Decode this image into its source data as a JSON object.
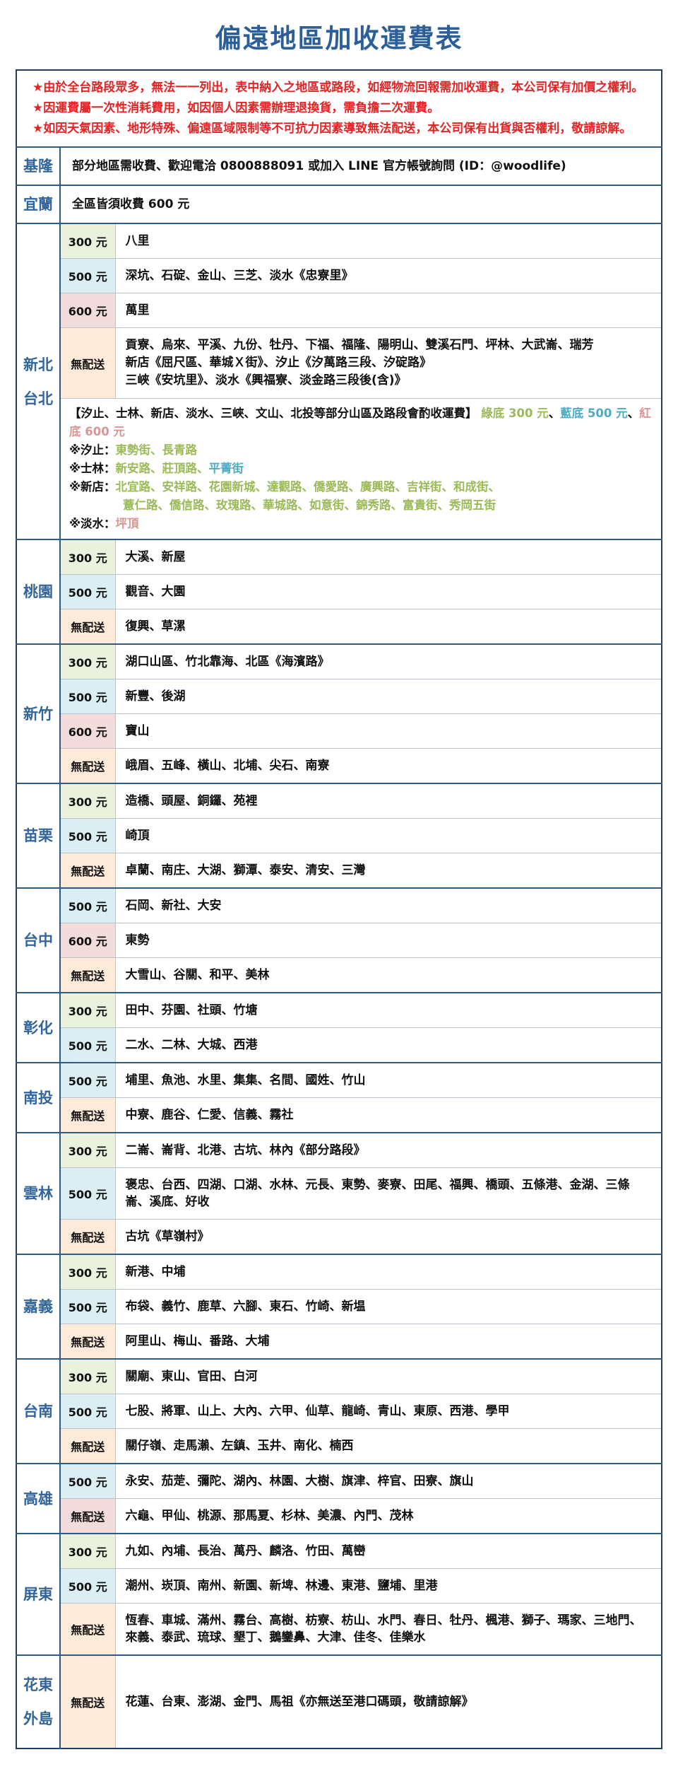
{
  "title": "偏遠地區加收運費表",
  "disclaimer": [
    "★由於全台路段眾多，無法一一列出，表中納入之地區或路段，如經物流回報需加收運費，本公司保有加價之權利。",
    "★因運費屬一次性消耗費用，如因個人因素需辦理退換貨，需負擔二次運費。",
    "★如因天氣因素、地形特殊、偏遠區域限制等不可抗力因素導致無法配送，本公司保有出貨與否權利，敬請諒解。"
  ],
  "fees": {
    "f300": "300 元",
    "f500": "500 元",
    "f600": "600 元",
    "fnone": "無配送"
  },
  "colors": {
    "title_blue": "#2b5f99",
    "region_blue": "#31659c",
    "note_red": "#e32424",
    "green_bg": "#eaf1dd",
    "blue_bg": "#daeef3",
    "pink_bg": "#f2dcdb",
    "orange_bg": "#fdead9",
    "green_text": "#9bbb59",
    "blue_text": "#4bacc6",
    "pink_text": "#d99694"
  },
  "regions": [
    {
      "label": "基隆",
      "info": "部分地區需收費、歡迎電洽 0800888091 或加入 LINE 官方帳號詢問 (ID：@woodlife)"
    },
    {
      "label": "宜蘭",
      "info": "全區皆須收費 600 元"
    },
    {
      "label1": "新北",
      "label2": "台北",
      "rows": [
        {
          "areas": "八里"
        },
        {
          "areas": "深坑、石碇、金山、三芝、淡水《忠寮里》"
        },
        {
          "areas": "萬里"
        },
        {
          "lines": [
            "貢寮、烏來、平溪、九份、牡丹、下福、福隆、陽明山、雙溪石門、坪林、大武崙、瑞芳",
            "新店《屈尺區、華城Ｘ街》、汐止《汐萬路三段、汐碇路》",
            "三峽《安坑里》、淡水《興福寮、淡金路三段後(含)》"
          ]
        }
      ],
      "note": {
        "header": "【汐止、士林、新店、淡水、三峽、文山、北投等部分山區及路段會酌收運費】",
        "legend_green": "綠底 300 元",
        "legend_blue": "藍底 500 元",
        "legend_red": "紅底 600 元",
        "sep": "、",
        "xizhi_prefix": "※汐止：",
        "xizhi_streets": "東勢街、長青路",
        "shilin_prefix": "※士林：",
        "shilin_green": "新安路、莊頂路、",
        "shilin_blue": "平菁街",
        "xindian_prefix": "※新店：",
        "xindian_line1": "北宜路、安祥路、花園新城、達觀路、僑愛路、廣興路、吉祥街、和成街、",
        "xindian_line2": "薏仁路、僑信路、玫瑰路、華城路、如意街、錦秀路、富貴街、秀岡五街",
        "danshui_prefix": "※淡水：",
        "danshui_streets": "坪頂"
      }
    },
    {
      "label": "桃園",
      "rows": [
        {
          "areas": "大溪、新屋"
        },
        {
          "areas": "觀音、大園"
        },
        {
          "areas": "復興、草漯"
        }
      ]
    },
    {
      "label": "新竹",
      "rows": [
        {
          "areas": "湖口山區、竹北靠海、北區《海濱路》"
        },
        {
          "areas": "新豐、後湖"
        },
        {
          "areas": "寶山"
        },
        {
          "areas": "峨眉、五峰、橫山、北埔、尖石、南寮"
        }
      ]
    },
    {
      "label": "苗栗",
      "rows": [
        {
          "areas": "造橋、頭屋、銅鑼、苑裡"
        },
        {
          "areas": "崎頂"
        },
        {
          "areas": "卓蘭、南庄、大湖、獅潭、泰安、清安、三灣"
        }
      ]
    },
    {
      "label": "台中",
      "rows": [
        {
          "areas": "石岡、新社、大安"
        },
        {
          "areas": "東勢"
        },
        {
          "areas": "大雪山、谷關、和平、美林"
        }
      ]
    },
    {
      "label": "彰化",
      "rows": [
        {
          "areas": "田中、芬園、社頭、竹塘"
        },
        {
          "areas": "二水、二林、大城、西港"
        }
      ]
    },
    {
      "label": "南投",
      "rows": [
        {
          "areas": "埔里、魚池、水里、集集、名間、國姓、竹山"
        },
        {
          "areas": "中寮、鹿谷、仁愛、信義、霧社"
        }
      ]
    },
    {
      "label": "雲林",
      "rows": [
        {
          "areas": "二崙、崙背、北港、古坑、林內《部分路段》"
        },
        {
          "areas": "褒忠、台西、四湖、口湖、水林、元長、東勢、麥寮、田尾、福興、橋頭、五條港、金湖、三條崙、溪底、好收"
        },
        {
          "areas": "古坑《草嶺村》"
        }
      ]
    },
    {
      "label": "嘉義",
      "rows": [
        {
          "areas": "新港、中埔"
        },
        {
          "areas": "布袋、義竹、鹿草、六腳、東石、竹崎、新塭"
        },
        {
          "areas": "阿里山、梅山、番路、大埔"
        }
      ]
    },
    {
      "label": "台南",
      "rows": [
        {
          "areas": "關廟、東山、官田、白河"
        },
        {
          "areas": "七股、將軍、山上、大內、六甲、仙草、龍崎、青山、東原、西港、學甲"
        },
        {
          "areas": "關仔嶺、走馬瀨、左鎮、玉井、南化、楠西"
        }
      ]
    },
    {
      "label": "高雄",
      "rows": [
        {
          "areas": "永安、茄萣、彌陀、湖內、林園、大樹、旗津、梓官、田寮、旗山"
        },
        {
          "areas": "六龜、甲仙、桃源、那馬夏、杉林、美濃、內門、茂林"
        }
      ]
    },
    {
      "label": "屏東",
      "rows": [
        {
          "areas": "九如、內埔、長治、萬丹、麟洛、竹田、萬巒"
        },
        {
          "areas": "潮州、崁頂、南州、新園、新埤、林邊、東港、鹽埔、里港"
        },
        {
          "areas": "恆春、車城、滿州、霧台、高樹、枋寮、枋山、水門、春日、牡丹、楓港、獅子、瑪家、三地門、來義、泰武、琉球、墾丁、鵝鑾鼻、大津、佳冬、佳樂水"
        }
      ]
    },
    {
      "label1": "花東",
      "label2": "外島",
      "rows": [
        {
          "areas": "花蓮、台東、澎湖、金門、馬祖《亦無送至港口碼頭，敬請諒解》"
        }
      ]
    }
  ]
}
